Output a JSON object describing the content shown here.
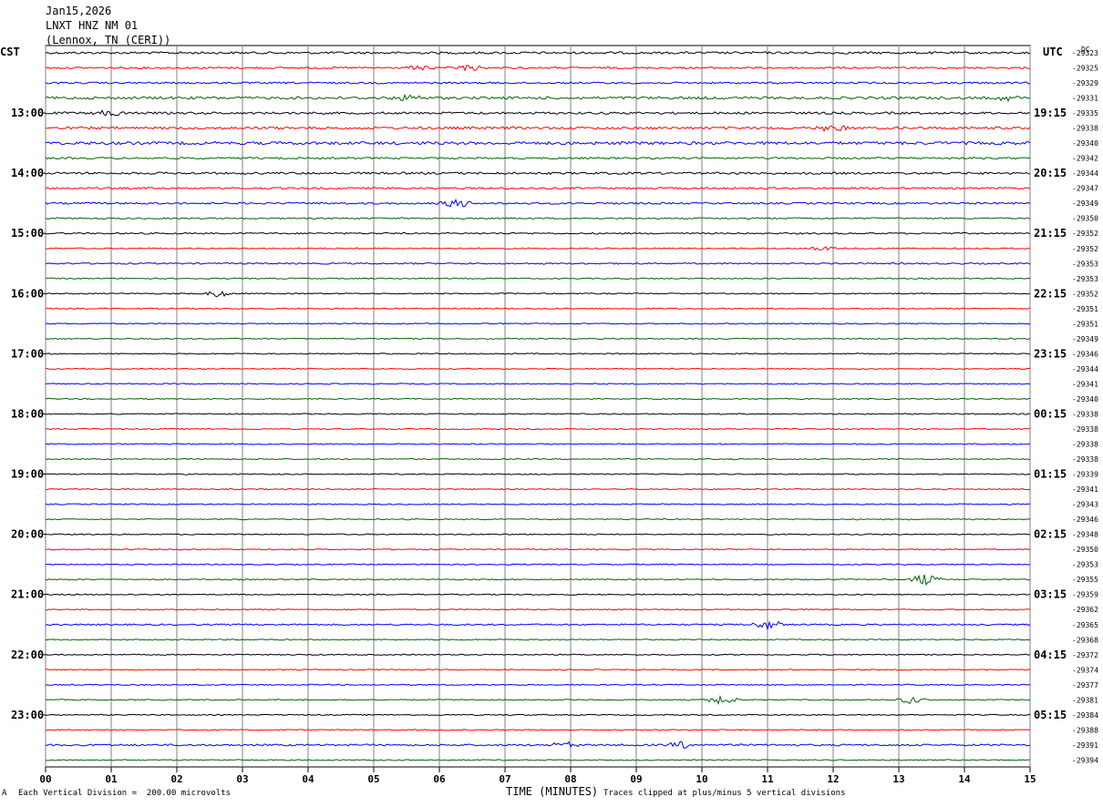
{
  "header": {
    "date": "Jan15,2026",
    "station": "LNXT HNZ NM 01",
    "location": "(Lennox, TN (CERI))"
  },
  "left_zone": "CST",
  "right_zone": "UTC",
  "dc_label": "DC",
  "footer": {
    "scale": "Each Vertical Division =  200.00 microvolts",
    "xtitle": "TIME (MINUTES)",
    "clip": "Traces clipped at plus/minus 5 vertical divisions",
    "mark": "A"
  },
  "colors": {
    "cycle": [
      "#000000",
      "#ff0000",
      "#0000ff",
      "#006400"
    ],
    "grid": "#808080"
  },
  "chart_data": {
    "type": "line",
    "title": "",
    "xlabel": "TIME (MINUTES)",
    "ylabel": "",
    "x_range": [
      0,
      15
    ],
    "x_ticks": [
      "00",
      "01",
      "02",
      "03",
      "04",
      "05",
      "06",
      "07",
      "08",
      "09",
      "10",
      "11",
      "12",
      "13",
      "14",
      "15"
    ],
    "grid": true,
    "trace_count": 48,
    "left_hour_labels": [
      "13:00",
      "14:00",
      "15:00",
      "16:00",
      "17:00",
      "18:00",
      "19:00",
      "20:00",
      "21:00",
      "22:00",
      "23:00"
    ],
    "right_hour_labels": [
      "19:15",
      "20:15",
      "21:15",
      "22:15",
      "23:15",
      "00:15",
      "01:15",
      "02:15",
      "03:15",
      "04:15",
      "05:15"
    ],
    "dc_offsets": [
      -29323,
      -29325,
      -29329,
      -29331,
      -29335,
      -29338,
      -29340,
      -29342,
      -29344,
      -29347,
      -29349,
      -29350,
      -29352,
      -29352,
      -29353,
      -29353,
      -29352,
      -29351,
      -29351,
      -29349,
      -29346,
      -29344,
      -29341,
      -29340,
      -29338,
      -29338,
      -29338,
      -29338,
      -29339,
      -29341,
      -29343,
      -29346,
      -29348,
      -29350,
      -29353,
      -29355,
      -29359,
      -29362,
      -29365,
      -29368,
      -29372,
      -29374,
      -29377,
      -29381,
      -29384,
      -29388,
      -29391,
      -29394
    ],
    "trace_noise": [
      0.6,
      0.5,
      0.5,
      0.7,
      0.6,
      0.7,
      0.8,
      0.5,
      0.6,
      0.5,
      0.5,
      0.4,
      0.4,
      0.3,
      0.4,
      0.3,
      0.3,
      0.3,
      0.3,
      0.3,
      0.3,
      0.3,
      0.3,
      0.3,
      0.3,
      0.3,
      0.3,
      0.3,
      0.3,
      0.3,
      0.3,
      0.3,
      0.3,
      0.3,
      0.3,
      0.3,
      0.3,
      0.3,
      0.4,
      0.3,
      0.3,
      0.3,
      0.3,
      0.3,
      0.3,
      0.3,
      0.5,
      0.3
    ],
    "events": [
      {
        "trace": 1,
        "minute": 5.7,
        "amp": 4
      },
      {
        "trace": 1,
        "minute": 6.5,
        "amp": 4
      },
      {
        "trace": 3,
        "minute": 5.5,
        "amp": 4
      },
      {
        "trace": 3,
        "minute": 14.6,
        "amp": 5
      },
      {
        "trace": 4,
        "minute": 1.0,
        "amp": 4
      },
      {
        "trace": 5,
        "minute": 12.0,
        "amp": 5
      },
      {
        "trace": 10,
        "minute": 6.25,
        "amp": 6
      },
      {
        "trace": 13,
        "minute": 11.8,
        "amp": 3
      },
      {
        "trace": 16,
        "minute": 2.6,
        "amp": 4
      },
      {
        "trace": 35,
        "minute": 13.4,
        "amp": 7
      },
      {
        "trace": 38,
        "minute": 11.0,
        "amp": 6
      },
      {
        "trace": 43,
        "minute": 10.3,
        "amp": 6
      },
      {
        "trace": 43,
        "minute": 13.2,
        "amp": 5
      },
      {
        "trace": 46,
        "minute": 7.9,
        "amp": 4
      },
      {
        "trace": 46,
        "minute": 9.7,
        "amp": 4
      }
    ]
  }
}
